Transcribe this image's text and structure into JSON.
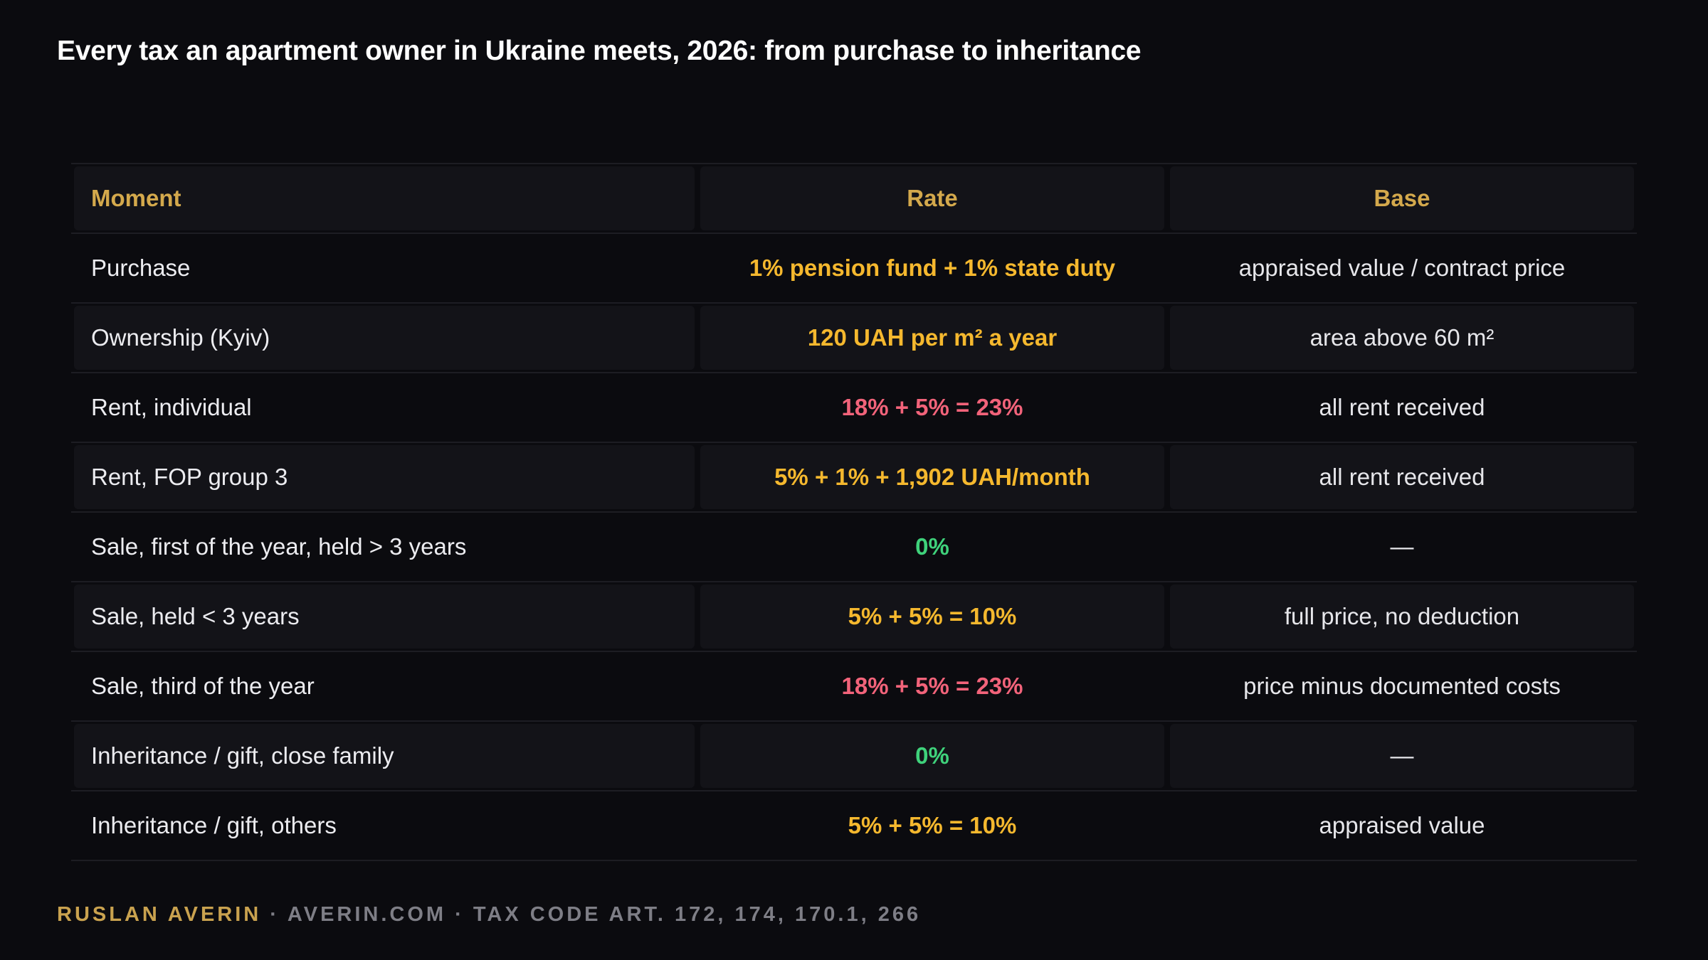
{
  "title": "Every tax an apartment owner in Ukraine meets, 2026: from purchase to inheritance",
  "colors": {
    "background": "#0b0b0f",
    "header_gold": "#d4a94c",
    "rate_amber": "#f5b82e",
    "rate_red": "#f2637a",
    "rate_green": "#3fd27b",
    "footer_gold": "#c9a24f",
    "footer_gray": "#7e7e86"
  },
  "table": {
    "headers": {
      "moment": "Moment",
      "rate": "Rate",
      "base": "Base"
    },
    "rows": [
      {
        "moment": "Purchase",
        "rate": "1% pension fund + 1% state duty",
        "base": "appraised value / contract price",
        "rate_color": "#f5b82e"
      },
      {
        "moment": "Ownership (Kyiv)",
        "rate": "120 UAH per m² a year",
        "base": "area above 60 m²",
        "rate_color": "#f5b82e"
      },
      {
        "moment": "Rent, individual",
        "rate": "18% + 5% = 23%",
        "base": "all rent received",
        "rate_color": "#f2637a"
      },
      {
        "moment": "Rent, FOP group 3",
        "rate": "5% + 1% + 1,902 UAH/month",
        "base": "all rent received",
        "rate_color": "#f5b82e"
      },
      {
        "moment": "Sale, first of the year, held > 3 years",
        "rate": "0%",
        "base": "—",
        "rate_color": "#3fd27b"
      },
      {
        "moment": "Sale, held < 3 years",
        "rate": "5% + 5% = 10%",
        "base": "full price, no deduction",
        "rate_color": "#f5b82e"
      },
      {
        "moment": "Sale, third of the year",
        "rate": "18% + 5% = 23%",
        "base": "price minus documented costs",
        "rate_color": "#f2637a"
      },
      {
        "moment": "Inheritance / gift, close family",
        "rate": "0%",
        "base": "—",
        "rate_color": "#3fd27b"
      },
      {
        "moment": "Inheritance / gift, others",
        "rate": "5% + 5% = 10%",
        "base": "appraised value",
        "rate_color": "#f5b82e"
      }
    ]
  },
  "footer": {
    "author": "RUSLAN AVERIN",
    "rest": " · AVERIN.COM · TAX CODE ART. 172, 174, 170.1, 266"
  }
}
